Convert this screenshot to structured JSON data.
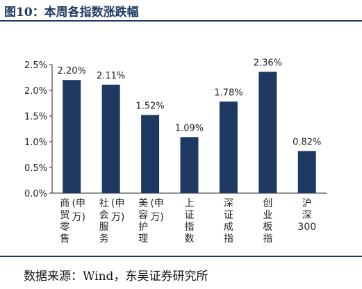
{
  "figure": {
    "title": "图10：本周各指数涨跌幅",
    "source": "数据来源：Wind，东吴证券研究所"
  },
  "chart_data": {
    "type": "bar",
    "categories": [
      {
        "name": "商贸零售",
        "lines": [
          [
            "商",
            "贸",
            "零",
            "售"
          ],
          [
            "(申",
            "万)"
          ]
        ]
      },
      {
        "name": "社会服务",
        "lines": [
          [
            "社",
            "会",
            "服",
            "务"
          ],
          [
            "(申",
            "万)"
          ]
        ]
      },
      {
        "name": "美容护理",
        "lines": [
          [
            "美",
            "容",
            "护",
            "理"
          ],
          [
            "(申",
            "万)"
          ]
        ]
      },
      {
        "name": "上证指数",
        "lines": [
          [
            "上",
            "证",
            "指",
            "数"
          ]
        ]
      },
      {
        "name": "深证成指",
        "lines": [
          [
            "深",
            "证",
            "成",
            "指"
          ]
        ]
      },
      {
        "name": "创业板指",
        "lines": [
          [
            "创",
            "业",
            "板",
            "指"
          ]
        ]
      },
      {
        "name": "沪深300",
        "lines": [
          [
            "沪",
            "深",
            "300"
          ]
        ]
      }
    ],
    "values": [
      2.2,
      2.11,
      1.52,
      1.09,
      1.78,
      2.36,
      0.82
    ],
    "value_labels": [
      "2.20%",
      "2.11%",
      "1.52%",
      "1.09%",
      "1.78%",
      "2.36%",
      "0.82%"
    ],
    "ylim": [
      0,
      2.5
    ],
    "yticks": [
      0,
      0.5,
      1.0,
      1.5,
      2.0,
      2.5
    ],
    "ytick_labels": [
      "0.0%",
      "0.5%",
      "1.0%",
      "1.5%",
      "2.0%",
      "2.5%"
    ],
    "grid": false,
    "legend": "none",
    "bar_color": "#1e3a63",
    "xlabel": "",
    "ylabel": ""
  }
}
